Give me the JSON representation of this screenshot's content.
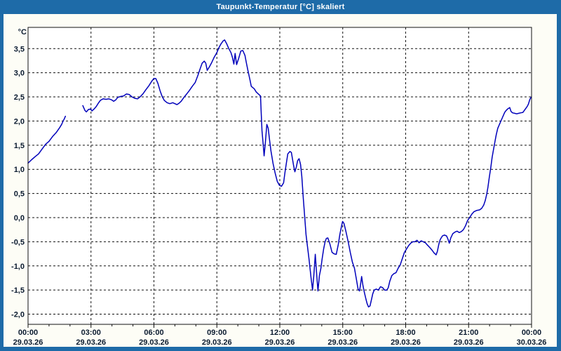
{
  "title": "Taupunkt-Temperatur [°C] skaliert",
  "colors": {
    "titlebar": "#1E6BA8",
    "frame": "#1E6BA8",
    "title_text": "#FFFFFF",
    "window_bg": "#FDFDF6",
    "plot_bg": "#FFFFFF",
    "grid": "#111111",
    "axis_text": "#0A1A2F",
    "line": "#0000BB"
  },
  "chart_data": {
    "type": "line",
    "title": "Taupunkt-Temperatur [°C] skaliert",
    "ylabel": "°C",
    "xlim": [
      0,
      24
    ],
    "ylim": [
      -2.21,
      3.94
    ],
    "grid": true,
    "grid_style": "dashed",
    "legend": "none",
    "x_minor_tick_interval_hours": 1,
    "y_ticks": [
      {
        "value": 3.5,
        "label": "3,5"
      },
      {
        "value": 3.0,
        "label": "3,0"
      },
      {
        "value": 2.5,
        "label": "2,5"
      },
      {
        "value": 2.0,
        "label": "2,0"
      },
      {
        "value": 1.5,
        "label": "1,5"
      },
      {
        "value": 1.0,
        "label": "1,0"
      },
      {
        "value": 0.5,
        "label": "0,5"
      },
      {
        "value": 0.0,
        "label": "0,0"
      },
      {
        "value": -0.5,
        "label": "-0,5"
      },
      {
        "value": -1.0,
        "label": "-1,0"
      },
      {
        "value": -1.5,
        "label": "-1,5"
      },
      {
        "value": -2.0,
        "label": "-2,0"
      }
    ],
    "x_ticks": [
      {
        "hour": 0,
        "time": "00:00",
        "date": "29.03.26"
      },
      {
        "hour": 3,
        "time": "03:00",
        "date": "29.03.26"
      },
      {
        "hour": 6,
        "time": "06:00",
        "date": "29.03.26"
      },
      {
        "hour": 9,
        "time": "09:00",
        "date": "29.03.26"
      },
      {
        "hour": 12,
        "time": "12:00",
        "date": "29.03.26"
      },
      {
        "hour": 15,
        "time": "15:00",
        "date": "29.03.26"
      },
      {
        "hour": 18,
        "time": "18:00",
        "date": "29.03.26"
      },
      {
        "hour": 21,
        "time": "21:00",
        "date": "29.03.26"
      },
      {
        "hour": 24,
        "time": "00:00",
        "date": "30.03.26"
      }
    ],
    "series": [
      {
        "name": "Taupunkt-Temperatur",
        "segments": [
          [
            [
              0.0,
              1.13
            ],
            [
              0.17,
              1.2
            ],
            [
              0.33,
              1.26
            ],
            [
              0.5,
              1.32
            ],
            [
              0.67,
              1.42
            ],
            [
              0.84,
              1.52
            ],
            [
              1.0,
              1.58
            ],
            [
              1.17,
              1.68
            ],
            [
              1.34,
              1.76
            ],
            [
              1.5,
              1.86
            ],
            [
              1.6,
              1.93
            ],
            [
              1.67,
              2.0
            ],
            [
              1.72,
              2.04
            ],
            [
              1.78,
              2.1
            ]
          ],
          [
            [
              2.61,
              2.32
            ],
            [
              2.71,
              2.22
            ],
            [
              2.78,
              2.19
            ],
            [
              2.88,
              2.24
            ],
            [
              2.98,
              2.25
            ],
            [
              3.05,
              2.21
            ],
            [
              3.15,
              2.25
            ],
            [
              3.25,
              2.3
            ],
            [
              3.35,
              2.37
            ],
            [
              3.45,
              2.43
            ],
            [
              3.58,
              2.46
            ],
            [
              3.72,
              2.45
            ],
            [
              3.85,
              2.46
            ],
            [
              3.98,
              2.44
            ],
            [
              4.08,
              2.41
            ],
            [
              4.18,
              2.44
            ],
            [
              4.28,
              2.49
            ],
            [
              4.42,
              2.51
            ],
            [
              4.55,
              2.52
            ],
            [
              4.69,
              2.56
            ],
            [
              4.82,
              2.55
            ],
            [
              4.95,
              2.5
            ],
            [
              5.09,
              2.47
            ],
            [
              5.22,
              2.46
            ],
            [
              5.36,
              2.51
            ],
            [
              5.49,
              2.57
            ],
            [
              5.62,
              2.65
            ],
            [
              5.76,
              2.73
            ],
            [
              5.89,
              2.82
            ],
            [
              5.99,
              2.88
            ],
            [
              6.09,
              2.88
            ],
            [
              6.19,
              2.78
            ],
            [
              6.29,
              2.63
            ],
            [
              6.39,
              2.51
            ],
            [
              6.49,
              2.43
            ],
            [
              6.63,
              2.38
            ],
            [
              6.76,
              2.36
            ],
            [
              6.9,
              2.38
            ],
            [
              7.0,
              2.36
            ],
            [
              7.1,
              2.34
            ],
            [
              7.2,
              2.37
            ],
            [
              7.3,
              2.41
            ],
            [
              7.43,
              2.49
            ],
            [
              7.56,
              2.56
            ],
            [
              7.7,
              2.64
            ],
            [
              7.83,
              2.72
            ],
            [
              7.97,
              2.8
            ],
            [
              8.1,
              2.95
            ],
            [
              8.2,
              3.08
            ],
            [
              8.3,
              3.2
            ],
            [
              8.4,
              3.24
            ],
            [
              8.47,
              3.2
            ],
            [
              8.54,
              3.05
            ],
            [
              8.64,
              3.12
            ],
            [
              8.74,
              3.2
            ],
            [
              8.87,
              3.32
            ],
            [
              9.0,
              3.42
            ],
            [
              9.1,
              3.52
            ],
            [
              9.2,
              3.6
            ],
            [
              9.3,
              3.66
            ],
            [
              9.37,
              3.68
            ],
            [
              9.47,
              3.6
            ],
            [
              9.57,
              3.5
            ],
            [
              9.67,
              3.42
            ],
            [
              9.74,
              3.32
            ],
            [
              9.81,
              3.18
            ],
            [
              9.87,
              3.4
            ],
            [
              9.94,
              3.17
            ],
            [
              10.04,
              3.3
            ],
            [
              10.14,
              3.45
            ],
            [
              10.24,
              3.46
            ],
            [
              10.34,
              3.36
            ],
            [
              10.41,
              3.2
            ],
            [
              10.48,
              3.05
            ],
            [
              10.58,
              2.85
            ],
            [
              10.64,
              2.72
            ],
            [
              10.78,
              2.67
            ],
            [
              10.88,
              2.6
            ],
            [
              10.98,
              2.56
            ],
            [
              11.08,
              2.52
            ],
            [
              11.11,
              2.2
            ],
            [
              11.15,
              1.8
            ],
            [
              11.21,
              1.5
            ],
            [
              11.25,
              1.28
            ],
            [
              11.31,
              1.55
            ],
            [
              11.38,
              1.93
            ],
            [
              11.45,
              1.85
            ],
            [
              11.51,
              1.62
            ],
            [
              11.58,
              1.38
            ],
            [
              11.68,
              1.12
            ],
            [
              11.78,
              0.92
            ],
            [
              11.88,
              0.75
            ],
            [
              11.98,
              0.67
            ],
            [
              12.08,
              0.65
            ],
            [
              12.18,
              0.72
            ],
            [
              12.25,
              0.95
            ],
            [
              12.32,
              1.15
            ],
            [
              12.38,
              1.32
            ],
            [
              12.48,
              1.37
            ],
            [
              12.55,
              1.35
            ],
            [
              12.65,
              1.1
            ],
            [
              12.72,
              0.95
            ],
            [
              12.79,
              1.05
            ],
            [
              12.85,
              1.18
            ],
            [
              12.92,
              1.22
            ],
            [
              12.99,
              1.1
            ],
            [
              13.05,
              0.85
            ],
            [
              13.12,
              0.4
            ],
            [
              13.19,
              0.0
            ],
            [
              13.25,
              -0.35
            ],
            [
              13.32,
              -0.6
            ],
            [
              13.39,
              -0.85
            ],
            [
              13.49,
              -1.25
            ],
            [
              13.56,
              -1.5
            ],
            [
              13.62,
              -1.2
            ],
            [
              13.69,
              -0.76
            ],
            [
              13.76,
              -1.2
            ],
            [
              13.82,
              -1.52
            ],
            [
              13.89,
              -1.2
            ],
            [
              13.96,
              -1.05
            ],
            [
              14.02,
              -0.85
            ],
            [
              14.09,
              -0.65
            ],
            [
              14.16,
              -0.5
            ],
            [
              14.22,
              -0.43
            ],
            [
              14.29,
              -0.42
            ],
            [
              14.39,
              -0.55
            ],
            [
              14.49,
              -0.72
            ],
            [
              14.59,
              -0.75
            ],
            [
              14.69,
              -0.76
            ],
            [
              14.79,
              -0.55
            ],
            [
              14.86,
              -0.35
            ],
            [
              14.93,
              -0.2
            ],
            [
              14.99,
              -0.08
            ],
            [
              15.06,
              -0.12
            ],
            [
              15.16,
              -0.3
            ],
            [
              15.26,
              -0.5
            ],
            [
              15.36,
              -0.72
            ],
            [
              15.46,
              -0.92
            ],
            [
              15.56,
              -1.05
            ],
            [
              15.66,
              -1.3
            ],
            [
              15.73,
              -1.48
            ],
            [
              15.8,
              -1.52
            ],
            [
              15.86,
              -1.35
            ],
            [
              15.9,
              -1.22
            ],
            [
              15.96,
              -1.4
            ],
            [
              16.03,
              -1.55
            ],
            [
              16.1,
              -1.68
            ],
            [
              16.16,
              -1.78
            ],
            [
              16.23,
              -1.85
            ],
            [
              16.3,
              -1.83
            ],
            [
              16.37,
              -1.7
            ],
            [
              16.43,
              -1.58
            ],
            [
              16.5,
              -1.5
            ],
            [
              16.6,
              -1.48
            ],
            [
              16.7,
              -1.5
            ],
            [
              16.8,
              -1.43
            ],
            [
              16.9,
              -1.45
            ],
            [
              17.0,
              -1.5
            ],
            [
              17.1,
              -1.5
            ],
            [
              17.17,
              -1.45
            ],
            [
              17.24,
              -1.32
            ],
            [
              17.34,
              -1.2
            ],
            [
              17.44,
              -1.16
            ],
            [
              17.54,
              -1.14
            ],
            [
              17.64,
              -1.05
            ],
            [
              17.74,
              -0.98
            ],
            [
              17.84,
              -0.85
            ],
            [
              17.94,
              -0.72
            ],
            [
              18.04,
              -0.65
            ],
            [
              18.14,
              -0.58
            ],
            [
              18.24,
              -0.53
            ],
            [
              18.34,
              -0.5
            ],
            [
              18.44,
              -0.5
            ],
            [
              18.54,
              -0.47
            ],
            [
              18.64,
              -0.52
            ],
            [
              18.74,
              -0.48
            ],
            [
              18.84,
              -0.5
            ],
            [
              18.94,
              -0.52
            ],
            [
              19.04,
              -0.57
            ],
            [
              19.15,
              -0.62
            ],
            [
              19.25,
              -0.67
            ],
            [
              19.35,
              -0.73
            ],
            [
              19.45,
              -0.77
            ],
            [
              19.51,
              -0.7
            ],
            [
              19.58,
              -0.55
            ],
            [
              19.65,
              -0.45
            ],
            [
              19.75,
              -0.38
            ],
            [
              19.85,
              -0.36
            ],
            [
              19.95,
              -0.38
            ],
            [
              20.02,
              -0.45
            ],
            [
              20.08,
              -0.53
            ],
            [
              20.15,
              -0.42
            ],
            [
              20.25,
              -0.33
            ],
            [
              20.35,
              -0.3
            ],
            [
              20.45,
              -0.28
            ],
            [
              20.55,
              -0.31
            ],
            [
              20.65,
              -0.29
            ],
            [
              20.75,
              -0.25
            ],
            [
              20.85,
              -0.17
            ],
            [
              20.95,
              -0.06
            ],
            [
              21.05,
              0.0
            ],
            [
              21.15,
              0.07
            ],
            [
              21.25,
              0.12
            ],
            [
              21.39,
              0.15
            ],
            [
              21.52,
              0.16
            ],
            [
              21.62,
              0.19
            ],
            [
              21.72,
              0.26
            ],
            [
              21.79,
              0.35
            ],
            [
              21.86,
              0.48
            ],
            [
              21.92,
              0.63
            ],
            [
              21.99,
              0.85
            ],
            [
              22.06,
              1.05
            ],
            [
              22.12,
              1.25
            ],
            [
              22.19,
              1.42
            ],
            [
              22.26,
              1.58
            ],
            [
              22.32,
              1.72
            ],
            [
              22.39,
              1.85
            ],
            [
              22.46,
              1.92
            ],
            [
              22.52,
              1.98
            ],
            [
              22.59,
              2.05
            ],
            [
              22.66,
              2.12
            ],
            [
              22.72,
              2.18
            ],
            [
              22.79,
              2.22
            ],
            [
              22.86,
              2.25
            ],
            [
              22.96,
              2.28
            ],
            [
              23.02,
              2.2
            ],
            [
              23.09,
              2.17
            ],
            [
              23.19,
              2.16
            ],
            [
              23.29,
              2.15
            ],
            [
              23.39,
              2.16
            ],
            [
              23.49,
              2.17
            ],
            [
              23.59,
              2.18
            ],
            [
              23.69,
              2.24
            ],
            [
              23.79,
              2.3
            ],
            [
              23.85,
              2.35
            ],
            [
              23.92,
              2.45
            ],
            [
              23.99,
              2.5
            ]
          ]
        ]
      }
    ]
  }
}
